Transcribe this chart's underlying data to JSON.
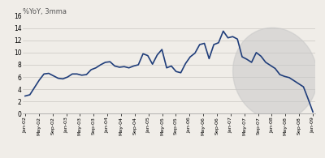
{
  "title": "%YoY, 3mma",
  "ylim": [
    0,
    16
  ],
  "yticks": [
    0,
    2,
    4,
    6,
    8,
    10,
    12,
    14,
    16
  ],
  "line_color": "#1f3d7a",
  "line_width": 1.2,
  "bg_color": "#f0ede8",
  "plot_bg": "#f0ede8",
  "ellipse_color": "#c8c8c8",
  "ellipse_alpha": 0.55,
  "x_labels": [
    "Jan-02",
    "May-02",
    "Sep-02",
    "Jan-03",
    "May-03",
    "Sep-03",
    "Jan-04",
    "May-04",
    "Sep-04",
    "Jan-05",
    "May-05",
    "Sep-05",
    "Jan-06",
    "May-06",
    "Sep-06",
    "Jan-07",
    "May-07",
    "Sep-07",
    "Jan-08",
    "May-08",
    "Sep-08",
    "Jan-09"
  ],
  "y_values": [
    2.9,
    3.1,
    4.3,
    5.5,
    6.5,
    6.6,
    6.2,
    5.8,
    5.7,
    6.0,
    6.5,
    6.5,
    6.3,
    6.4,
    7.2,
    7.5,
    8.0,
    8.4,
    8.5,
    7.8,
    7.6,
    7.7,
    7.5,
    7.8,
    8.0,
    9.8,
    9.5,
    8.1,
    9.6,
    10.5,
    7.5,
    7.8,
    6.9,
    6.7,
    8.2,
    9.3,
    9.9,
    11.3,
    11.5,
    9.0,
    11.3,
    11.6,
    13.5,
    12.4,
    12.6,
    12.2,
    9.3,
    8.9,
    8.4,
    10.0,
    9.4,
    8.4,
    7.9,
    7.4,
    6.4,
    6.1,
    5.9,
    5.4,
    4.9,
    4.4,
    2.4,
    0.3
  ],
  "n_points": 62
}
